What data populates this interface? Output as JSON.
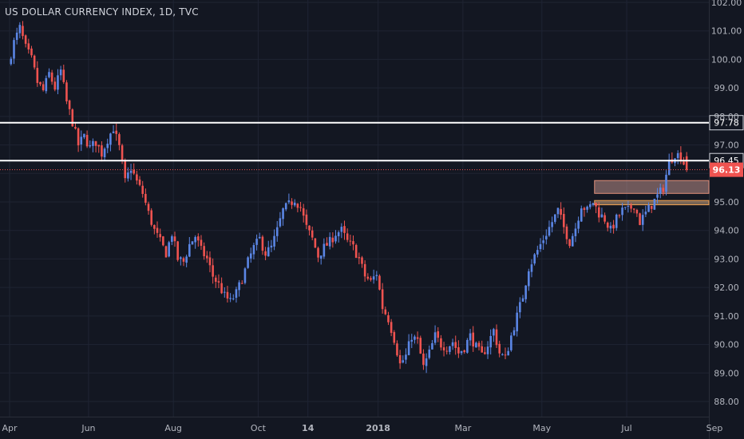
{
  "chart_data": {
    "type": "candlestick",
    "title": "US DOLLAR CURRENCY INDEX, 1D, TVC",
    "x_tick_labels": [
      "Apr",
      "Jun",
      "Aug",
      "Oct",
      "14",
      "2018",
      "Mar",
      "May",
      "Jul",
      "Sep"
    ],
    "y_tick_labels": [
      "102.00",
      "101.00",
      "100.00",
      "99.00",
      "98.00",
      "97.00",
      "96.00",
      "95.00",
      "94.00",
      "93.00",
      "92.00",
      "91.00",
      "90.00",
      "89.00",
      "88.00"
    ],
    "ylim": [
      87.6,
      102.1
    ],
    "xlim": [
      0,
      121
    ],
    "x_ticks": [
      {
        "label": "Apr",
        "x": 0
      },
      {
        "label": "Jun",
        "x": 13.5
      },
      {
        "label": "Aug",
        "x": 28
      },
      {
        "label": "Oct",
        "x": 42.5
      },
      {
        "label": "14",
        "x": 51
      },
      {
        "label": "2018",
        "x": 63
      },
      {
        "label": "Mar",
        "x": 77.5
      },
      {
        "label": "May",
        "x": 91
      },
      {
        "label": "Jul",
        "x": 105.5
      },
      {
        "label": "Sep",
        "x": 120.5
      }
    ],
    "y_ticks": [
      102,
      101,
      100,
      99,
      98,
      97,
      96,
      95,
      94,
      93,
      92,
      91,
      90,
      89,
      88
    ],
    "grid": true,
    "horizontal_lines": [
      {
        "value": 97.78,
        "label": "97.78",
        "color": "#ffffff"
      },
      {
        "value": 96.45,
        "label": "96.45",
        "color": "#ffffff"
      }
    ],
    "last_price": {
      "value": 96.13,
      "label": "96.13",
      "color": "#ef5350"
    },
    "zones": [
      {
        "from": 95.3,
        "to": 95.75,
        "x_start": 100,
        "fill": "#e0a8a0",
        "stroke": "#e08f7a"
      },
      {
        "from": 94.9,
        "to": 95.05,
        "x_start": 100,
        "fill": "#f0c090",
        "stroke": "#f0a050"
      }
    ],
    "colors": {
      "up": "#5b86e5",
      "down": "#ef5350",
      "background": "#131722",
      "grid": "#1f2433",
      "axis_text": "#b2b5be"
    },
    "anchors": [
      [
        0,
        99.8
      ],
      [
        1,
        100.6
      ],
      [
        2,
        101.1
      ],
      [
        3,
        100.4
      ],
      [
        4,
        100.0
      ],
      [
        5,
        99.2
      ],
      [
        6,
        98.9
      ],
      [
        7,
        99.5
      ],
      [
        8,
        99.0
      ],
      [
        9,
        99.6
      ],
      [
        10,
        98.5
      ],
      [
        11,
        97.8
      ],
      [
        12,
        97.0
      ],
      [
        13,
        97.3
      ],
      [
        14,
        96.9
      ],
      [
        15,
        97.1
      ],
      [
        16,
        96.7
      ],
      [
        17,
        97.2
      ],
      [
        18,
        97.6
      ],
      [
        19,
        96.9
      ],
      [
        20,
        95.7
      ],
      [
        21,
        96.2
      ],
      [
        22,
        95.7
      ],
      [
        23,
        95.3
      ],
      [
        24,
        94.6
      ],
      [
        25,
        94.0
      ],
      [
        26,
        93.6
      ],
      [
        27,
        93.2
      ],
      [
        28,
        93.9
      ],
      [
        29,
        93.0
      ],
      [
        30,
        92.9
      ],
      [
        31,
        93.5
      ],
      [
        32,
        93.8
      ],
      [
        33,
        93.3
      ],
      [
        34,
        93.0
      ],
      [
        35,
        92.4
      ],
      [
        36,
        92.1
      ],
      [
        37,
        91.7
      ],
      [
        38,
        91.5
      ],
      [
        39,
        91.8
      ],
      [
        40,
        92.3
      ],
      [
        41,
        92.9
      ],
      [
        42,
        93.4
      ],
      [
        43,
        93.7
      ],
      [
        44,
        93.2
      ],
      [
        45,
        93.4
      ],
      [
        46,
        94.0
      ],
      [
        47,
        94.7
      ],
      [
        48,
        94.9
      ],
      [
        49,
        95.1
      ],
      [
        50,
        94.8
      ],
      [
        51,
        94.1
      ],
      [
        52,
        93.7
      ],
      [
        53,
        93.1
      ],
      [
        54,
        93.4
      ],
      [
        55,
        93.6
      ],
      [
        56,
        93.9
      ],
      [
        57,
        94.0
      ],
      [
        58,
        93.6
      ],
      [
        59,
        93.4
      ],
      [
        60,
        93.0
      ],
      [
        61,
        92.4
      ],
      [
        62,
        92.2
      ],
      [
        63,
        92.5
      ],
      [
        64,
        91.3
      ],
      [
        65,
        90.9
      ],
      [
        66,
        90.2
      ],
      [
        67,
        89.3
      ],
      [
        68,
        89.6
      ],
      [
        69,
        90.3
      ],
      [
        70,
        90.1
      ],
      [
        71,
        89.2
      ],
      [
        72,
        89.7
      ],
      [
        73,
        90.3
      ],
      [
        74,
        90.0
      ],
      [
        75,
        89.9
      ],
      [
        76,
        90.1
      ],
      [
        77,
        89.7
      ],
      [
        78,
        89.9
      ],
      [
        79,
        90.3
      ],
      [
        80,
        89.9
      ],
      [
        81,
        89.6
      ],
      [
        82,
        90.0
      ],
      [
        83,
        90.5
      ],
      [
        84,
        89.7
      ],
      [
        85,
        89.5
      ],
      [
        86,
        90.3
      ],
      [
        87,
        91.0
      ],
      [
        88,
        91.7
      ],
      [
        89,
        92.7
      ],
      [
        90,
        93.1
      ],
      [
        91,
        93.5
      ],
      [
        92,
        93.9
      ],
      [
        93,
        94.3
      ],
      [
        94,
        94.7
      ],
      [
        95,
        94.1
      ],
      [
        96,
        93.6
      ],
      [
        97,
        94.1
      ],
      [
        98,
        94.9
      ],
      [
        99,
        94.7
      ],
      [
        100,
        95.0
      ],
      [
        101,
        94.6
      ],
      [
        102,
        94.4
      ],
      [
        103,
        94.0
      ],
      [
        104,
        94.4
      ],
      [
        105,
        94.7
      ],
      [
        106,
        94.7
      ],
      [
        107,
        94.9
      ],
      [
        108,
        94.3
      ],
      [
        109,
        94.6
      ],
      [
        110,
        94.9
      ],
      [
        111,
        95.2
      ],
      [
        112,
        95.5
      ],
      [
        113,
        96.4
      ],
      [
        114,
        96.7
      ],
      [
        115,
        96.6
      ],
      [
        116,
        96.13
      ]
    ]
  }
}
